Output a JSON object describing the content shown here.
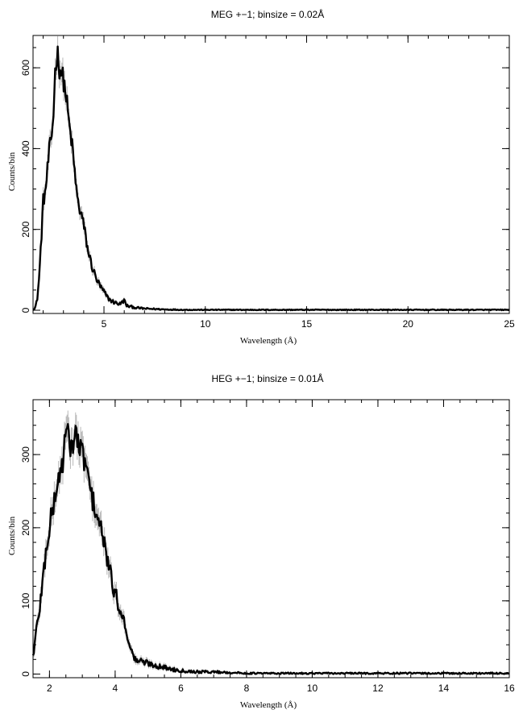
{
  "chart_data": [
    {
      "type": "line",
      "title": "MEG +−1; binsize = 0.02Å",
      "xlabel": "Wavelength (Å)",
      "ylabel": "Counts/bin",
      "xlim": [
        1.5,
        25
      ],
      "ylim": [
        -8,
        680
      ],
      "xticks": [
        5,
        10,
        15,
        20,
        25
      ],
      "yticks": [
        0,
        200,
        400,
        600
      ],
      "xminor": 1,
      "yminor": 50,
      "grid": false,
      "legend": "none",
      "series": [
        {
          "x": [
            1.5,
            1.6,
            1.7,
            1.8,
            1.9,
            2.0,
            2.1,
            2.2,
            2.3,
            2.4,
            2.5,
            2.6,
            2.7,
            2.8,
            2.9,
            3.0,
            3.1,
            3.2,
            3.3,
            3.4,
            3.5,
            3.6,
            3.7,
            3.8,
            3.9,
            4.0,
            4.1,
            4.2,
            4.4,
            4.6,
            4.8,
            5.0,
            5.2,
            5.4,
            5.6,
            5.8,
            6.0,
            6.1,
            6.2,
            6.4,
            6.6,
            6.8,
            7.0,
            7.5,
            8.0,
            9.0,
            10.0,
            12.0,
            15.0,
            20.0,
            25.0
          ],
          "y": [
            2,
            5,
            25,
            80,
            170,
            270,
            290,
            340,
            395,
            420,
            480,
            600,
            640,
            600,
            590,
            570,
            540,
            500,
            450,
            420,
            370,
            320,
            270,
            250,
            235,
            210,
            180,
            150,
            110,
            80,
            60,
            45,
            30,
            22,
            18,
            15,
            25,
            12,
            10,
            8,
            6,
            5,
            4,
            3,
            2,
            1,
            1,
            1,
            1,
            1,
            1
          ]
        }
      ]
    },
    {
      "type": "line",
      "title": "HEG +−1; binsize = 0.01Å",
      "xlabel": "Wavelength (Å)",
      "ylabel": "Counts/bin",
      "xlim": [
        1.5,
        16
      ],
      "ylim": [
        -5,
        375
      ],
      "xticks": [
        2,
        4,
        6,
        8,
        10,
        12,
        14,
        16
      ],
      "yticks": [
        0,
        100,
        200,
        300
      ],
      "xminor": 0.5,
      "yminor": 20,
      "grid": false,
      "legend": "none",
      "series": [
        {
          "x": [
            1.5,
            1.55,
            1.6,
            1.7,
            1.8,
            1.9,
            2.0,
            2.1,
            2.2,
            2.3,
            2.4,
            2.5,
            2.6,
            2.7,
            2.8,
            2.9,
            3.0,
            3.1,
            3.2,
            3.3,
            3.4,
            3.5,
            3.6,
            3.7,
            3.8,
            3.9,
            4.0,
            4.1,
            4.2,
            4.3,
            4.4,
            4.5,
            4.6,
            4.8,
            5.0,
            5.2,
            5.4,
            5.6,
            5.8,
            6.0,
            6.2,
            6.5,
            7.0,
            7.5,
            8.0,
            9.0,
            10.0,
            12.0,
            14.0,
            16.0
          ],
          "y": [
            25,
            40,
            60,
            90,
            130,
            170,
            200,
            225,
            250,
            270,
            290,
            330,
            320,
            310,
            330,
            310,
            300,
            290,
            260,
            240,
            225,
            210,
            190,
            170,
            150,
            125,
            110,
            95,
            85,
            65,
            50,
            30,
            20,
            17,
            15,
            12,
            10,
            8,
            6,
            5,
            4,
            3,
            3,
            2,
            1,
            1,
            1,
            1,
            1,
            1
          ]
        }
      ]
    }
  ]
}
